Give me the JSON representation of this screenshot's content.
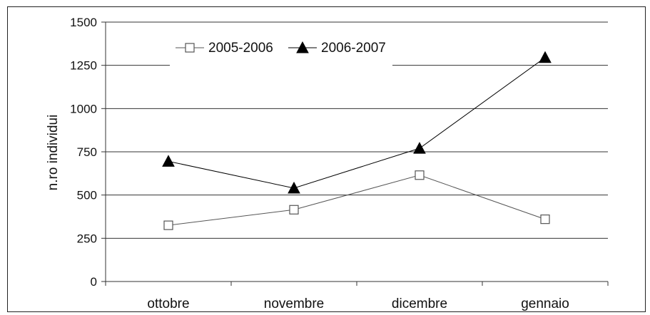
{
  "chart_data": {
    "type": "line",
    "categories": [
      "ottobre",
      "novembre",
      "dicembre",
      "gennaio"
    ],
    "ylabel": "n.ro individui",
    "xlabel": "",
    "title": "",
    "ylim": [
      0,
      1500
    ],
    "yticks": [
      0,
      250,
      500,
      750,
      1000,
      1250,
      1500
    ],
    "grid": true,
    "legend_position": "top",
    "series": [
      {
        "name": "2005-2006",
        "marker": "square-open",
        "color": "#555555",
        "values": [
          325,
          415,
          615,
          360
        ]
      },
      {
        "name": "2006-2007",
        "marker": "triangle-filled",
        "color": "#000000",
        "values": [
          695,
          540,
          770,
          1295
        ]
      }
    ]
  }
}
